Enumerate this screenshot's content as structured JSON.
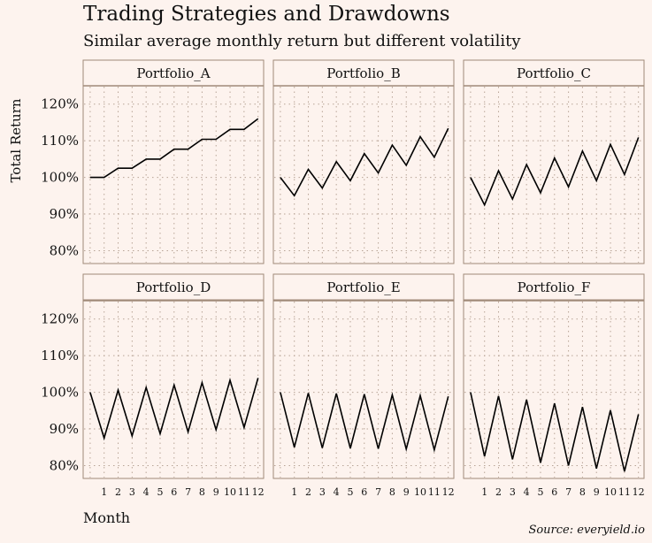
{
  "chart_data": {
    "type": "line",
    "title": "Trading Strategies and Drawdowns",
    "subtitle": "Similar average monthly return but different volatility",
    "xlabel": "Month",
    "ylabel": "Total Return",
    "source": "Source: everyield.io",
    "x": [
      0,
      1,
      2,
      3,
      4,
      5,
      6,
      7,
      8,
      9,
      10,
      11,
      12
    ],
    "x_ticks": [
      1,
      2,
      3,
      4,
      5,
      6,
      7,
      8,
      9,
      10,
      11,
      12
    ],
    "y_ticks": [
      80,
      90,
      100,
      110,
      120
    ],
    "y_tick_labels": [
      "80%",
      "90%",
      "100%",
      "110%",
      "120%"
    ],
    "ylim": [
      76.5,
      125
    ],
    "xlim": [
      -0.5,
      12.4
    ],
    "series": [
      {
        "name": "Portfolio_A",
        "values": [
          100,
          100,
          102.5,
          102.5,
          105,
          105,
          107.7,
          107.7,
          110.4,
          110.4,
          113.1,
          113.1,
          116
        ]
      },
      {
        "name": "Portfolio_B",
        "values": [
          100,
          95,
          102.2,
          97.1,
          104.3,
          99.1,
          106.5,
          101.2,
          108.8,
          103.3,
          111.1,
          105.5,
          113.4
        ]
      },
      {
        "name": "Portfolio_C",
        "values": [
          100,
          92.5,
          101.8,
          94.1,
          103.5,
          95.8,
          105.3,
          97.4,
          107.2,
          99.1,
          109,
          100.8,
          110.9
        ]
      },
      {
        "name": "Portfolio_D",
        "values": [
          100,
          87.5,
          100.6,
          88.1,
          101.3,
          88.7,
          102,
          89.2,
          102.6,
          89.8,
          103.3,
          90.4,
          103.9
        ]
      },
      {
        "name": "Portfolio_E",
        "values": [
          100,
          85,
          99.8,
          84.8,
          99.7,
          84.7,
          99.5,
          84.6,
          99.3,
          84.5,
          99.1,
          84.3,
          98.9
        ]
      },
      {
        "name": "Portfolio_F",
        "values": [
          100,
          82.5,
          99,
          81.7,
          98,
          80.8,
          97,
          80,
          96,
          79.2,
          95.1,
          78.4,
          94
        ]
      }
    ]
  }
}
